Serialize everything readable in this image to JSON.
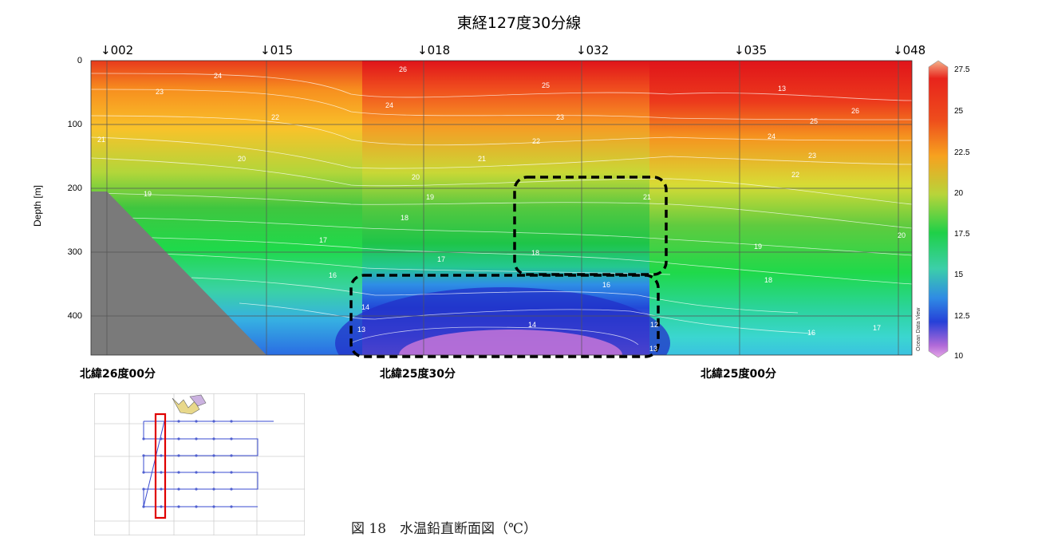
{
  "chart_data": {
    "type": "heatmap",
    "title": "東経127度30分線",
    "ylabel": "Depth [m]",
    "xlabel": "",
    "ylim": [
      0,
      460
    ],
    "y_ticks": [
      0,
      100,
      200,
      300,
      400
    ],
    "stations": [
      "↓002",
      "↓015",
      "↓018",
      "↓032",
      "↓035",
      "↓048"
    ],
    "latitude_labels": [
      "北緯26度00分",
      "北緯25度30分",
      "北緯25度00分"
    ],
    "colorbar": {
      "ticks": [
        27.5,
        25,
        22.5,
        20,
        17.5,
        15,
        12.5,
        10
      ],
      "range": [
        10,
        28
      ]
    },
    "contour_labels": [
      "24",
      "23",
      "22",
      "21",
      "20",
      "19",
      "18",
      "17",
      "16",
      "14",
      "13",
      "26",
      "25",
      "24",
      "23",
      "22",
      "21",
      "20",
      "19",
      "18",
      "17",
      "16",
      "14",
      "12",
      "13",
      "26",
      "25",
      "24",
      "23",
      "22",
      "21",
      "20",
      "19",
      "18",
      "17",
      "16",
      "13"
    ],
    "grid": true,
    "watermark": "Ocean Data View"
  },
  "caption": "図 18　水温鉛直断面図（℃）",
  "colors": {
    "bathymetry": "#7a7a7a",
    "highlight_box": "#000000",
    "inset_box": "#e00000",
    "track": "#3a4bd0"
  }
}
